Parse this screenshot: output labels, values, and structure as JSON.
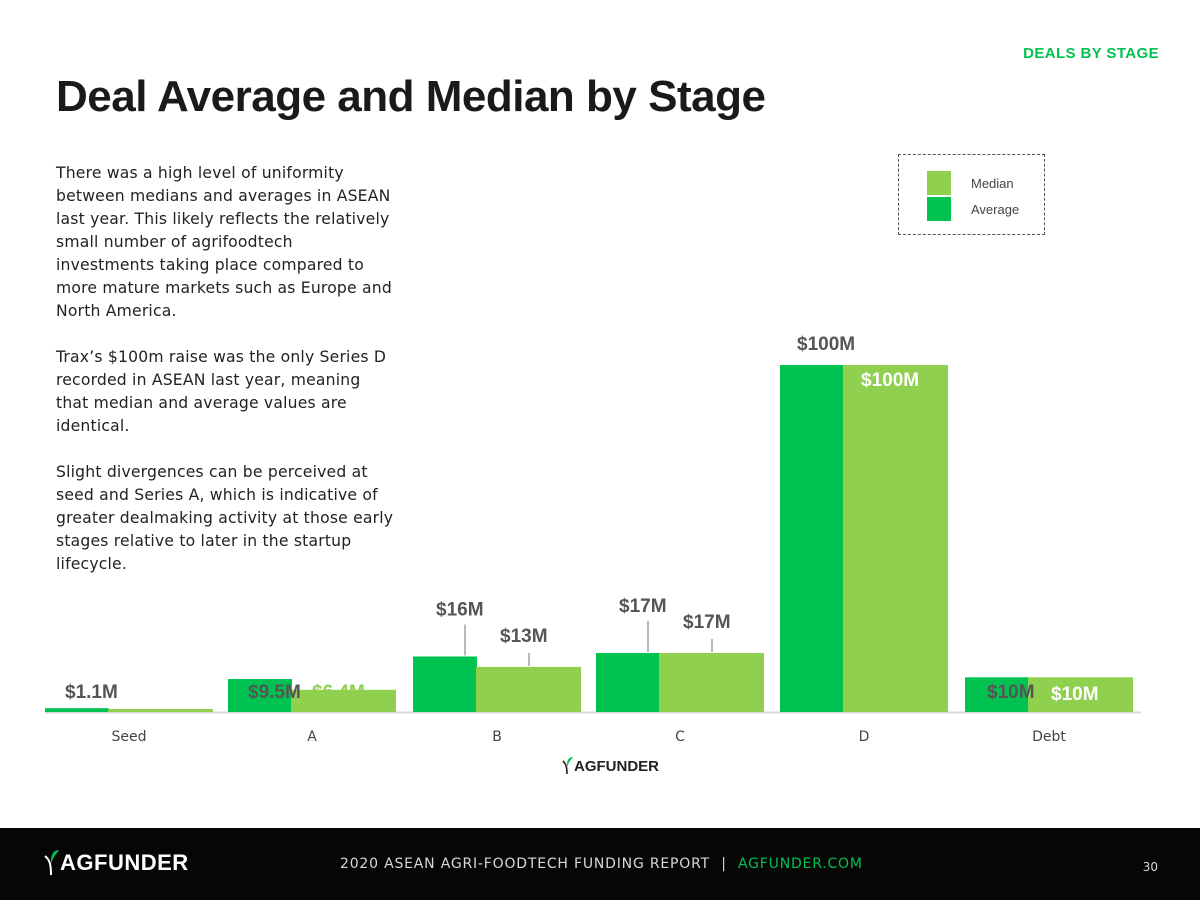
{
  "header": {
    "section_label": "DEALS BY STAGE",
    "title": "Deal Average and Median by Stage"
  },
  "body": {
    "paragraphs": [
      "There was a high level of uniformity between medians and averages in ASEAN last year. This likely reflects the relatively small number of agrifoodtech investments taking place compared to more mature markets such as Europe and North America.",
      "Trax’s $100m raise was the only Series D recorded in ASEAN last year, meaning that median and average values are identical.",
      "Slight divergences can be perceived at seed and Series A, which is indicative of greater dealmaking activity at those early stages relative to later in the startup lifecycle."
    ]
  },
  "colors": {
    "average": "#00c250",
    "median": "#8fd14f",
    "accent": "#00c250",
    "footer_bg": "#060606"
  },
  "chart_data": {
    "type": "bar",
    "categories": [
      "Seed",
      "A",
      "B",
      "C",
      "D",
      "Debt"
    ],
    "series": [
      {
        "name": "Average",
        "values": [
          1.1,
          9.5,
          16,
          17,
          100,
          10
        ],
        "labels": [
          "$1.1M",
          "$9.5M",
          "$16M",
          "$17M",
          "$100M",
          "$10M"
        ]
      },
      {
        "name": "Median",
        "values": [
          0.5,
          6.4,
          13,
          17,
          100,
          10
        ],
        "labels": [
          "",
          "$6.4M",
          "$13M",
          "$17M",
          "$100M",
          "$10M"
        ]
      }
    ],
    "legend": {
      "items": [
        "Median",
        "Average"
      ],
      "position": "top-right"
    },
    "ylim": [
      0,
      100
    ],
    "xlabel": "",
    "ylabel": ""
  },
  "logo": {
    "chart_logo": "AGFUNDER",
    "footer_logo": "AGFUNDER"
  },
  "footer": {
    "report": "2020 ASEAN AGRI-FOODTECH FUNDING REPORT",
    "separator": "|",
    "url": "AGFUNDER.COM",
    "page": "30"
  }
}
